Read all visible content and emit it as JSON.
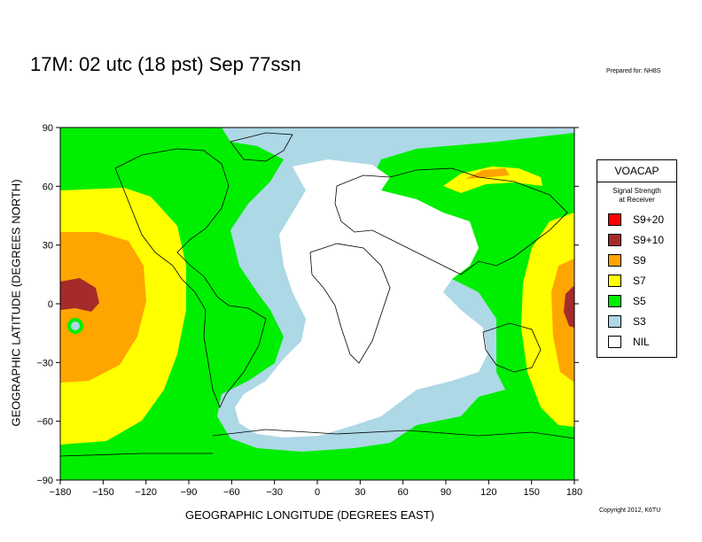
{
  "title": "17M:  02 utc (18 pst) Sep 77ssn",
  "prepared_for": "Prepared for: NH8S",
  "copyright": "Copyright 2012, K6TU",
  "axes": {
    "xlabel": "GEOGRAPHIC LONGITUDE (DEGREES EAST)",
    "ylabel": "GEOGRAPHIC LATITUDE (DEGREES NORTH)",
    "x_ticks": [
      "-180",
      "-150",
      "-120",
      "-90",
      "-60",
      "-30",
      "0",
      "30",
      "60",
      "90",
      "120",
      "150",
      "180"
    ],
    "y_ticks": [
      "90",
      "60",
      "30",
      "0",
      "-30",
      "-60",
      "-90"
    ],
    "xlim": [
      -180,
      180
    ],
    "ylim": [
      -90,
      90
    ]
  },
  "legend": {
    "title": "VOACAP",
    "subtitle_line1": "Signal Strength",
    "subtitle_line2": "at Receiver",
    "items": [
      {
        "label": "S9+20",
        "color": "#ff0000"
      },
      {
        "label": "S9+10",
        "color": "#a52a2a"
      },
      {
        "label": "S9",
        "color": "#ffa500"
      },
      {
        "label": "S7",
        "color": "#ffff00"
      },
      {
        "label": "S5",
        "color": "#00ee00"
      },
      {
        "label": "S3",
        "color": "#add8e6"
      },
      {
        "label": "NIL",
        "color": "#ffffff"
      }
    ]
  }
}
